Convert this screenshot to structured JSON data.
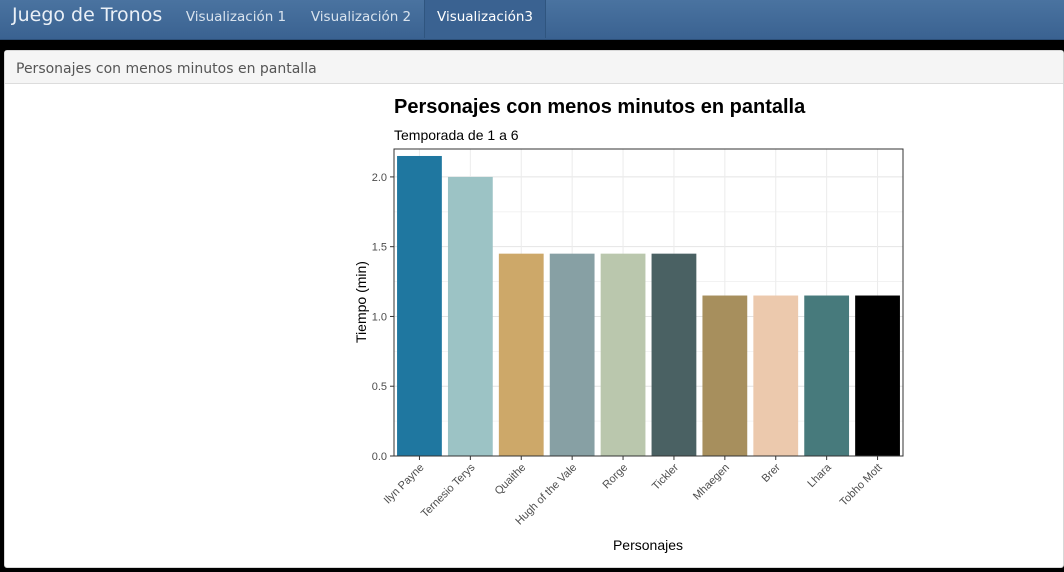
{
  "navbar": {
    "brand": "Juego de Tronos",
    "tabs": [
      {
        "label": "Visualización 1",
        "active": false
      },
      {
        "label": "Visualización 2",
        "active": false
      },
      {
        "label": "Visualización3",
        "active": true
      }
    ]
  },
  "panel": {
    "title": "Personajes con menos minutos en pantalla"
  },
  "chart_data": {
    "type": "bar",
    "title": "Personajes con menos minutos en pantalla",
    "subtitle": "Temporada de 1 a 6",
    "xlabel": "Personajes",
    "ylabel": "Tiempo (min)",
    "ylim": [
      0,
      2.2
    ],
    "yticks": [
      "0.0",
      "0.5",
      "1.0",
      "1.5",
      "2.0"
    ],
    "grid": true,
    "categories": [
      "Ilyn Payne",
      "Ternesio Terys",
      "Quaithe",
      "Hugh of the Vale",
      "Rorge",
      "Tickler",
      "Mhaegen",
      "Brer",
      "Lhara",
      "Tobho Mott"
    ],
    "values": [
      2.15,
      2.0,
      1.45,
      1.45,
      1.45,
      1.45,
      1.15,
      1.15,
      1.15,
      1.15
    ],
    "colors": [
      "#1f77a0",
      "#9cc3c5",
      "#cda869",
      "#87a0a4",
      "#bac7ad",
      "#4a6163",
      "#a78f5d",
      "#ecc9ad",
      "#477a7c",
      "#000000"
    ]
  }
}
